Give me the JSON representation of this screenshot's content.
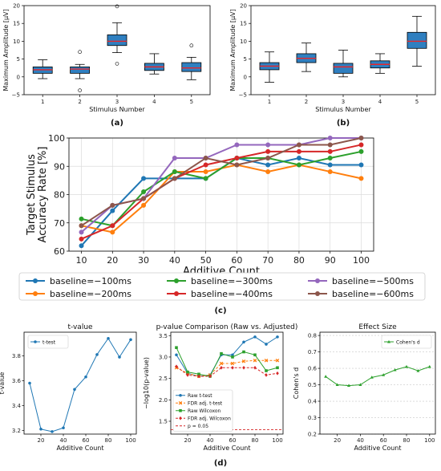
{
  "colors": {
    "box_fill": "#2f7fc0",
    "median": "#e8262a",
    "blue": "#1f77b4",
    "orange": "#ff7f0e",
    "green": "#2ca02c",
    "red": "#d62728",
    "purple": "#9467bd",
    "brown": "#8c564b"
  },
  "chart_data": [
    {
      "panel": "a",
      "type": "box",
      "caption": "(a)",
      "xlabel": "Stimulus Number",
      "ylabel": "Maximum Amplitude [μV]",
      "categories": [
        "1",
        "2",
        "3",
        "4",
        "5"
      ],
      "ylim": [
        -5,
        20
      ],
      "yticks": [
        -5,
        0,
        5,
        10,
        15,
        20
      ],
      "boxes": [
        {
          "whislo": -0.5,
          "q1": 1.0,
          "med": 2.0,
          "q3": 2.8,
          "whishi": 4.8,
          "fliers": []
        },
        {
          "whislo": -0.5,
          "q1": 1.0,
          "med": 2.2,
          "q3": 2.8,
          "whishi": 3.5,
          "fliers": [
            7.0,
            -3.8
          ]
        },
        {
          "whislo": 6.8,
          "q1": 8.8,
          "med": 10.0,
          "q3": 11.8,
          "whishi": 15.2,
          "fliers": [
            19.8,
            3.7
          ]
        },
        {
          "whislo": 0.8,
          "q1": 1.8,
          "med": 2.8,
          "q3": 3.8,
          "whishi": 6.5,
          "fliers": []
        },
        {
          "whislo": -0.8,
          "q1": 1.5,
          "med": 2.5,
          "q3": 4.0,
          "whishi": 5.5,
          "fliers": [
            8.8
          ]
        }
      ]
    },
    {
      "panel": "b",
      "type": "box",
      "caption": "(b)",
      "xlabel": "Stimulus Number",
      "ylabel": "Maximum Amplitude [μV]",
      "categories": [
        "1",
        "2",
        "3",
        "4",
        "5"
      ],
      "ylim": [
        -5,
        20
      ],
      "yticks": [
        -5,
        0,
        5,
        10,
        15,
        20
      ],
      "boxes": [
        {
          "whislo": -1.5,
          "q1": 2.0,
          "med": 3.0,
          "q3": 4.0,
          "whishi": 7.0,
          "fliers": []
        },
        {
          "whislo": 1.5,
          "q1": 4.0,
          "med": 5.2,
          "q3": 6.5,
          "whishi": 9.5,
          "fliers": []
        },
        {
          "whislo": 0.0,
          "q1": 1.0,
          "med": 2.8,
          "q3": 3.8,
          "whishi": 7.5,
          "fliers": []
        },
        {
          "whislo": 1.0,
          "q1": 2.5,
          "med": 3.5,
          "q3": 4.5,
          "whishi": 6.5,
          "fliers": []
        },
        {
          "whislo": 3.0,
          "q1": 8.0,
          "med": 10.0,
          "q3": 12.5,
          "whishi": 17.0,
          "fliers": []
        }
      ]
    },
    {
      "panel": "c",
      "type": "line",
      "caption": "(c)",
      "xlabel": "Additive Count",
      "ylabel_lines": [
        "Target Stimulus",
        "Accuracy Rate [%]"
      ],
      "x": [
        10,
        20,
        30,
        40,
        50,
        60,
        70,
        80,
        90,
        100
      ],
      "xlim": [
        6,
        104
      ],
      "ylim": [
        60,
        100
      ],
      "yticks": [
        60,
        70,
        80,
        90,
        100
      ],
      "series": [
        {
          "name": "baseline=−100ms",
          "color": "blue",
          "values": [
            61.9,
            74.3,
            85.7,
            85.7,
            85.7,
            92.9,
            90.5,
            92.9,
            90.5,
            90.5
          ]
        },
        {
          "name": "baseline=−200ms",
          "color": "orange",
          "values": [
            69.0,
            66.7,
            76.2,
            88.1,
            88.1,
            90.5,
            88.1,
            90.5,
            88.1,
            85.7
          ]
        },
        {
          "name": "baseline=−300ms",
          "color": "green",
          "values": [
            71.4,
            69.0,
            81.0,
            88.1,
            85.7,
            92.9,
            92.9,
            90.5,
            92.9,
            95.2
          ]
        },
        {
          "name": "baseline=−400ms",
          "color": "red",
          "values": [
            64.3,
            69.0,
            78.6,
            85.7,
            90.5,
            92.9,
            95.2,
            95.2,
            95.2,
            97.6
          ]
        },
        {
          "name": "baseline=−500ms",
          "color": "purple",
          "values": [
            66.7,
            76.2,
            78.6,
            92.9,
            92.9,
            97.6,
            97.6,
            97.6,
            100,
            100
          ]
        },
        {
          "name": "baseline=−600ms",
          "color": "brown",
          "values": [
            69.0,
            76.2,
            78.6,
            85.7,
            92.9,
            90.5,
            92.9,
            97.6,
            97.6,
            100
          ]
        }
      ]
    },
    {
      "panel": "d1",
      "type": "line",
      "title": "t-value",
      "xlabel": "Additive Count",
      "ylabel": "t-value",
      "x": [
        10,
        20,
        30,
        40,
        50,
        60,
        70,
        80,
        90,
        100
      ],
      "xlim": [
        5,
        105
      ],
      "ylim": [
        3.17,
        3.99
      ],
      "yticks": [
        3.2,
        3.4,
        3.6,
        3.8
      ],
      "series": [
        {
          "name": "t-test",
          "color": "blue",
          "values": [
            3.58,
            3.21,
            3.19,
            3.22,
            3.53,
            3.63,
            3.81,
            3.94,
            3.79,
            3.93
          ]
        }
      ]
    },
    {
      "panel": "d2",
      "type": "line",
      "title": "p-value Comparison (Raw vs. Adjusted)",
      "xlabel": "Additive Count",
      "ylabel": "−log10(p-value)",
      "x": [
        10,
        20,
        30,
        40,
        50,
        60,
        70,
        80,
        90,
        100
      ],
      "xlim": [
        5,
        105
      ],
      "ylim": [
        1.2,
        3.58
      ],
      "yticks": [
        1.5,
        2.0,
        2.5,
        3.0,
        3.5
      ],
      "threshold": {
        "name": "p = 0.05",
        "value": 1.301,
        "color": "red"
      },
      "series": [
        {
          "name": "Raw t-test",
          "color": "blue",
          "values": [
            3.05,
            2.62,
            2.55,
            2.58,
            3.05,
            3.05,
            3.35,
            3.47,
            3.3,
            3.47
          ]
        },
        {
          "name": "FDR adj. t-test",
          "color": "orange",
          "values": [
            2.75,
            2.62,
            2.55,
            2.58,
            2.85,
            2.85,
            2.9,
            2.92,
            2.92,
            2.92
          ]
        },
        {
          "name": "Raw Wilcoxon",
          "color": "green",
          "values": [
            3.22,
            2.65,
            2.6,
            2.55,
            3.08,
            3.0,
            3.12,
            3.05,
            2.68,
            2.75
          ]
        },
        {
          "name": "FDR adj. Wilcoxon",
          "color": "red",
          "values": [
            2.78,
            2.58,
            2.55,
            2.55,
            2.75,
            2.75,
            2.75,
            2.75,
            2.58,
            2.62
          ]
        }
      ]
    },
    {
      "panel": "d3",
      "type": "line",
      "title": "Effect Size",
      "xlabel": "Additive Count",
      "ylabel": "Cohen's d",
      "x": [
        10,
        20,
        30,
        40,
        50,
        60,
        70,
        80,
        90,
        100
      ],
      "xlim": [
        5,
        105
      ],
      "ylim": [
        0.2,
        0.82
      ],
      "yticks": [
        0.2,
        0.3,
        0.4,
        0.5,
        0.6,
        0.7,
        0.8
      ],
      "series": [
        {
          "name": "Cohen's d",
          "color": "green",
          "values": [
            0.55,
            0.5,
            0.495,
            0.5,
            0.545,
            0.56,
            0.59,
            0.61,
            0.585,
            0.61
          ]
        }
      ]
    }
  ],
  "caption_d": "(d)"
}
